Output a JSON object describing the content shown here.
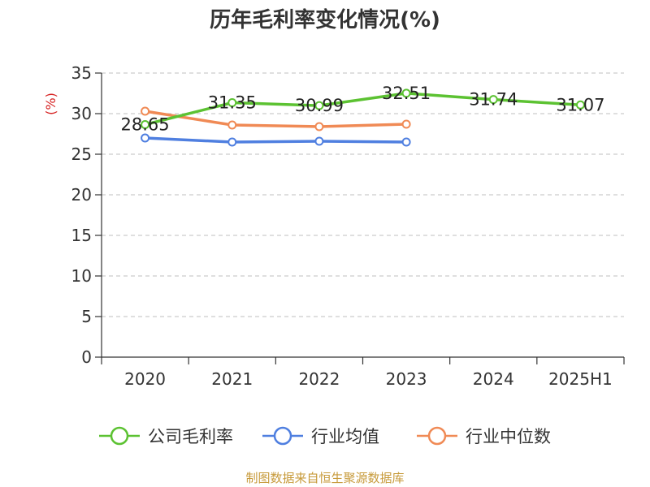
{
  "chart_data": {
    "type": "line",
    "title": "历年毛利率变化情况(%)",
    "ylabel": "(%)",
    "categories": [
      "2020",
      "2021",
      "2022",
      "2023",
      "2024",
      "2025H1"
    ],
    "ylim": [
      0,
      35
    ],
    "yticks": [
      0,
      5,
      10,
      15,
      20,
      25,
      30,
      35
    ],
    "grid": true,
    "legend_position": "bottom",
    "series": [
      {
        "name": "公司毛利率",
        "color": "#5cc232",
        "values": [
          28.65,
          31.35,
          30.99,
          32.51,
          31.74,
          31.07
        ],
        "show_labels": true
      },
      {
        "name": "行业均值",
        "color": "#4f7fe0",
        "values": [
          27.0,
          26.5,
          26.6,
          26.5,
          null,
          null
        ],
        "show_labels": false
      },
      {
        "name": "行业中位数",
        "color": "#f08a55",
        "values": [
          30.3,
          28.6,
          28.4,
          28.7,
          null,
          null
        ],
        "show_labels": false
      }
    ]
  },
  "footer": {
    "source": "制图数据来自恒生聚源数据库"
  }
}
